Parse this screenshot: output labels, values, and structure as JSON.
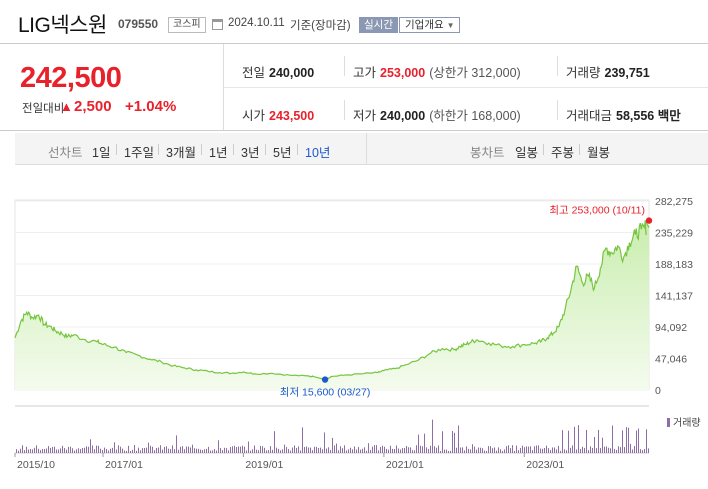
{
  "stock": {
    "name": "LIG넥스원",
    "code": "079550",
    "market": "코스피",
    "date": "2024.10.11",
    "date_note": "기준(장마감)",
    "realtime_label": "실시간",
    "profile_label": "기업개요"
  },
  "quote": {
    "price": "242,500",
    "change_label": "전일대비",
    "change_arrow": "▲",
    "change": "2,500",
    "change_pct": "+1.04%",
    "prev_close_label": "전일",
    "prev_close": "240,000",
    "high_label": "고가",
    "high": "253,000",
    "upper_limit": "(상한가 312,000)",
    "volume_label": "거래량",
    "volume": "239,751",
    "open_label": "시가",
    "open": "243,500",
    "low_label": "저가",
    "low": "240,000",
    "lower_limit": "(하한가 168,000)",
    "turnover_label": "거래대금",
    "turnover": "58,556 백만"
  },
  "tabs": {
    "line_label": "선차트",
    "line_items": [
      "1일",
      "1주일",
      "3개월",
      "1년",
      "3년",
      "5년",
      "10년"
    ],
    "line_active": "10년",
    "candle_label": "봉차트",
    "candle_items": [
      "일봉",
      "주봉",
      "월봉"
    ]
  },
  "colors": {
    "up": "#e8212b",
    "line": "#76c53f",
    "area_top": "#d6f1bd",
    "volume": "#8e6fa5",
    "active_tab": "#1c59c9"
  },
  "chart_data": {
    "type": "area",
    "x_ticks": [
      "2015/10",
      "2017/01",
      "2019/01",
      "2021/01",
      "2023/01"
    ],
    "y_ticks": [
      0,
      47046,
      94092,
      141137,
      188183,
      235229,
      282275
    ],
    "y_tick_labels": [
      "0",
      "47,046",
      "94,092",
      "141,137",
      "188,183",
      "235,229",
      "282,275"
    ],
    "ylim": [
      0,
      282275
    ],
    "x": [
      "2015/10",
      "2015/11",
      "2015/12",
      "2016/01",
      "2016/02",
      "2016/03",
      "2016/04",
      "2016/05",
      "2016/06",
      "2016/07",
      "2016/08",
      "2016/10",
      "2016/12",
      "2017/01",
      "2017/03",
      "2017/05",
      "2017/07",
      "2017/09",
      "2017/11",
      "2018/01",
      "2018/03",
      "2018/05",
      "2018/07",
      "2018/09",
      "2018/11",
      "2019/01",
      "2019/03",
      "2019/06",
      "2019/09",
      "2019/12",
      "2020/01",
      "2020/03",
      "2020/04",
      "2020/06",
      "2020/09",
      "2020/12",
      "2021/01",
      "2021/03",
      "2021/05",
      "2021/07",
      "2021/09",
      "2021/11",
      "2022/01",
      "2022/02",
      "2022/03",
      "2022/04",
      "2022/05",
      "2022/07",
      "2022/09",
      "2022/11",
      "2023/01",
      "2023/03",
      "2023/04",
      "2023/05",
      "2023/06",
      "2023/07",
      "2023/08",
      "2023/09",
      "2023/10",
      "2023/11",
      "2023/12",
      "2024/01",
      "2024/02",
      "2024/03",
      "2024/04",
      "2024/05",
      "2024/06",
      "2024/07",
      "2024/08",
      "2024/09",
      "2024/10"
    ],
    "values": [
      78000,
      103000,
      116000,
      108000,
      112000,
      98000,
      95000,
      88000,
      84000,
      80000,
      82000,
      75000,
      72000,
      68000,
      64000,
      56000,
      52000,
      46000,
      42000,
      36000,
      33000,
      30000,
      28000,
      26000,
      25000,
      27000,
      24000,
      25000,
      22000,
      21000,
      20000,
      15600,
      20000,
      22000,
      24000,
      26000,
      29000,
      32000,
      38000,
      45000,
      55000,
      62000,
      60000,
      65000,
      68000,
      72000,
      75000,
      70000,
      66000,
      65000,
      68000,
      70000,
      73000,
      78000,
      85000,
      95000,
      120000,
      150000,
      185000,
      160000,
      170000,
      152000,
      182000,
      212000,
      205000,
      215000,
      198000,
      220000,
      232000,
      240000,
      242500
    ],
    "volume_label": "거래량",
    "high_label": "최고 253,000 (10/11)",
    "high_value": 253000,
    "low_label": "최저 15,600 (03/27)",
    "low_value": 15600,
    "low_index": 31
  }
}
